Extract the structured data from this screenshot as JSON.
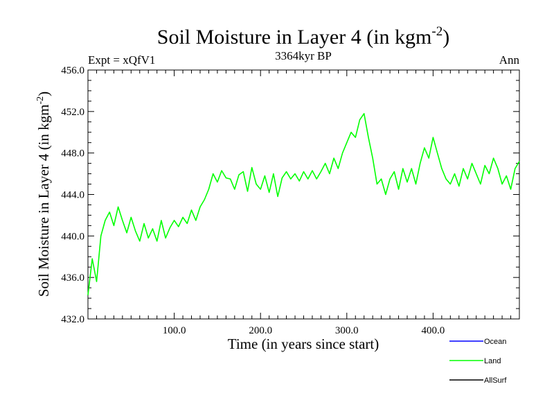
{
  "chart_data": {
    "type": "line",
    "title_main": "Soil Moisture in Layer 4 (in kgm",
    "title_sup": "-2",
    "title_end": ")",
    "subtitle_left": "Expt = xQfV1",
    "subtitle_center": "3364kyr BP",
    "subtitle_right": "Ann",
    "xlabel": "Time (in years since start)",
    "ylabel_main": "Soil Moisture in Layer 4 (in kgm",
    "ylabel_sup": "-2",
    "ylabel_end": ")",
    "xlim": [
      0,
      500
    ],
    "ylim": [
      432,
      456
    ],
    "xticks": [
      100,
      200,
      300,
      400
    ],
    "xtick_labels": [
      "100.0",
      "200.0",
      "300.0",
      "400.0"
    ],
    "yticks": [
      432,
      436,
      440,
      444,
      448,
      452,
      456
    ],
    "ytick_labels": [
      "432.0",
      "436.0",
      "440.0",
      "444.0",
      "448.0",
      "452.0",
      "456.0"
    ],
    "legend": [
      {
        "name": "Ocean",
        "color": "#0000ff"
      },
      {
        "name": "Land",
        "color": "#00ff00"
      },
      {
        "name": "AllSurf",
        "color": "#000000"
      }
    ],
    "series": [
      {
        "name": "Land",
        "color": "#00ff00",
        "x_start": 0,
        "x_step": 5,
        "values": [
          434.3,
          437.8,
          435.6,
          440.0,
          441.5,
          442.3,
          441.0,
          442.8,
          441.5,
          440.3,
          441.8,
          440.5,
          439.5,
          441.2,
          439.8,
          440.7,
          439.5,
          441.5,
          439.8,
          440.8,
          441.5,
          440.9,
          441.8,
          441.2,
          442.5,
          441.5,
          442.8,
          443.5,
          444.5,
          446.0,
          445.2,
          446.3,
          445.6,
          445.5,
          444.5,
          445.9,
          446.2,
          444.3,
          446.6,
          445.0,
          444.5,
          445.8,
          444.2,
          446.0,
          443.8,
          445.6,
          446.2,
          445.5,
          446.0,
          445.3,
          446.2,
          445.5,
          446.3,
          445.5,
          446.2,
          447.0,
          446.0,
          447.5,
          446.5,
          448.0,
          449.0,
          450.0,
          449.5,
          451.2,
          451.8,
          449.5,
          447.5,
          445.0,
          445.5,
          444.0,
          445.5,
          446.2,
          444.5,
          446.5,
          445.2,
          446.5,
          445.0,
          447.0,
          448.5,
          447.5,
          449.5,
          448.0,
          446.5,
          445.5,
          445.0,
          446.0,
          444.8,
          446.5,
          445.5,
          447.0,
          446.0,
          445.0,
          446.8,
          446.0,
          447.5,
          446.5,
          445.0,
          445.8,
          444.5,
          446.5,
          447.2
        ]
      }
    ]
  }
}
